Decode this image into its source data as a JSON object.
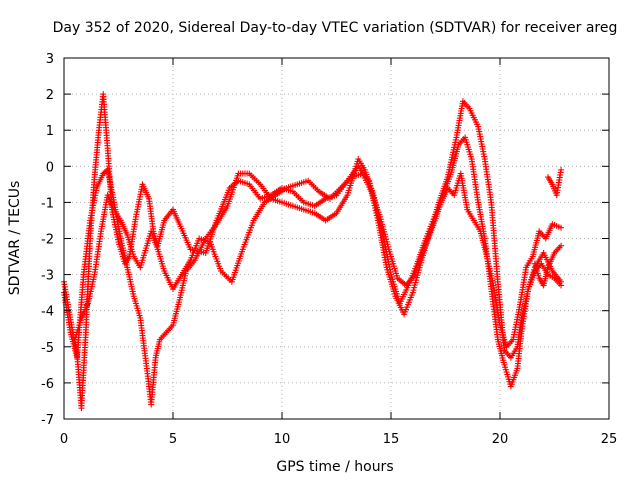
{
  "chart_data": {
    "type": "scatter",
    "title": "Day 352 of 2020, Sidereal Day-to-day VTEC variation (SDTVAR) for receiver areg",
    "xlabel": "GPS time / hours",
    "ylabel": "SDTVAR / TECUs",
    "xlim": [
      0,
      25
    ],
    "ylim": [
      -7,
      3
    ],
    "xticks": [
      0,
      5,
      10,
      15,
      20,
      25
    ],
    "yticks": [
      -7,
      -6,
      -5,
      -4,
      -3,
      -2,
      -1,
      0,
      1,
      2,
      3
    ],
    "grid": true,
    "marker": "plus",
    "color": "#ff0000",
    "series": [
      {
        "name": "trace-1",
        "x": [
          0,
          0.2,
          0.4,
          0.6,
          0.8,
          1.0,
          1.2,
          1.4,
          1.6,
          1.8,
          2.0,
          2.2,
          2.5,
          2.8,
          3.0,
          3.3,
          3.6,
          3.9,
          4.1,
          4.3,
          4.6,
          5.0,
          5.3,
          5.8,
          6.5,
          7.0,
          7.6,
          8.0,
          8.5,
          9.0,
          9.5,
          10.0,
          10.5,
          11.0,
          11.5,
          12.0,
          12.5,
          13.0,
          13.5,
          14.0,
          14.4,
          14.8,
          15.2,
          15.6,
          16.0,
          16.4,
          16.8,
          17.2,
          17.6,
          18.0,
          18.3,
          18.6,
          19.0,
          19.3,
          19.6,
          19.9,
          20.2,
          20.5,
          20.8,
          21.0,
          21.3,
          21.6,
          22.0,
          22.4,
          22.8
        ],
        "y": [
          -3.2,
          -3.9,
          -4.6,
          -5.2,
          -6.7,
          -4.6,
          -2.0,
          -0.3,
          1.0,
          2.0,
          0.5,
          -1.2,
          -2.1,
          -2.7,
          -2.5,
          -1.4,
          -0.5,
          -0.9,
          -1.8,
          -2.2,
          -1.5,
          -1.2,
          -1.6,
          -2.3,
          -2.4,
          -1.5,
          -0.6,
          -0.4,
          -0.5,
          -0.9,
          -0.8,
          -0.6,
          -0.7,
          -1.0,
          -1.1,
          -0.9,
          -0.8,
          -0.4,
          0.0,
          -0.4,
          -1.5,
          -2.8,
          -3.6,
          -4.1,
          -3.5,
          -2.6,
          -1.8,
          -1.0,
          -0.3,
          0.8,
          1.8,
          1.6,
          1.1,
          0.2,
          -1.0,
          -3.2,
          -5.1,
          -5.3,
          -5.0,
          -4.2,
          -3.4,
          -2.8,
          -2.4,
          -2.9,
          -3.2
        ]
      },
      {
        "name": "trace-2",
        "x": [
          0,
          0.3,
          0.6,
          0.9,
          1.2,
          1.5,
          1.8,
          2.0,
          2.3,
          2.6,
          2.9,
          3.2,
          3.5,
          3.8,
          4.0,
          4.2,
          4.4,
          4.7,
          5.0,
          5.3,
          5.6,
          6.0,
          6.5,
          7.0,
          7.5,
          8.0,
          8.5,
          9.0,
          9.5,
          10.0,
          10.5,
          11.0,
          11.5,
          12.0,
          12.5,
          13.0,
          13.5,
          13.8,
          14.2,
          14.6,
          15.0,
          15.4,
          15.8,
          16.2,
          16.6,
          17.0,
          17.4,
          17.8,
          18.1,
          18.4,
          18.7,
          19.0,
          19.3,
          19.6,
          19.9,
          20.2,
          20.5,
          20.8,
          21.0,
          21.3,
          21.6,
          21.9,
          22.2,
          22.5,
          22.8
        ],
        "y": [
          -3.5,
          -4.6,
          -5.3,
          -3.0,
          -1.5,
          -0.6,
          -0.2,
          -0.1,
          -1.0,
          -2.0,
          -2.8,
          -3.6,
          -4.2,
          -5.6,
          -6.6,
          -5.3,
          -4.8,
          -4.6,
          -4.4,
          -3.7,
          -2.9,
          -2.6,
          -2.0,
          -1.6,
          -1.1,
          -0.2,
          -0.2,
          -0.5,
          -0.9,
          -1.0,
          -1.1,
          -1.2,
          -1.3,
          -1.5,
          -1.3,
          -0.8,
          0.2,
          -0.1,
          -0.8,
          -1.8,
          -3.0,
          -3.8,
          -3.3,
          -2.7,
          -2.0,
          -1.4,
          -0.8,
          -0.1,
          0.6,
          0.8,
          0.2,
          -1.0,
          -2.0,
          -3.4,
          -4.8,
          -5.5,
          -6.1,
          -5.6,
          -4.5,
          -3.4,
          -2.9,
          -2.7,
          -3.0,
          -3.1,
          -3.3
        ]
      },
      {
        "name": "trace-3",
        "x": [
          0.5,
          0.8,
          1.1,
          1.4,
          1.7,
          2.0,
          2.3,
          2.6,
          2.9,
          3.2,
          3.5,
          3.8,
          4.0,
          4.3,
          4.6,
          5.0,
          5.4,
          5.8,
          6.2,
          6.7,
          7.2,
          7.7,
          8.2,
          8.7,
          9.2,
          9.7,
          10.2,
          10.7,
          11.2,
          11.7,
          12.2,
          12.7,
          13.2,
          13.7,
          14.1,
          14.5,
          14.9,
          15.3,
          15.7,
          16.1,
          16.5,
          16.9,
          17.3,
          17.6,
          17.9,
          18.2,
          18.5,
          18.8,
          19.1,
          19.4,
          19.7,
          20.0,
          20.3,
          20.6,
          20.9,
          21.2,
          21.5,
          21.8,
          22.1,
          22.4,
          22.8
        ],
        "y": [
          -4.8,
          -4.2,
          -3.8,
          -3.0,
          -1.8,
          -0.8,
          -1.2,
          -1.5,
          -1.9,
          -2.5,
          -2.8,
          -2.2,
          -1.8,
          -2.3,
          -2.9,
          -3.4,
          -3.0,
          -2.6,
          -2.0,
          -2.1,
          -2.9,
          -3.2,
          -2.3,
          -1.5,
          -1.0,
          -0.8,
          -0.6,
          -0.5,
          -0.4,
          -0.7,
          -0.9,
          -0.6,
          -0.3,
          -0.2,
          -0.7,
          -1.4,
          -2.3,
          -3.1,
          -3.3,
          -3.0,
          -2.3,
          -1.7,
          -1.0,
          -0.6,
          -0.8,
          -0.2,
          -1.2,
          -1.5,
          -1.8,
          -2.5,
          -3.3,
          -4.4,
          -5.0,
          -4.8,
          -3.9,
          -2.8,
          -2.5,
          -1.8,
          -2.0,
          -1.6,
          -1.7
        ]
      },
      {
        "name": "trace-4",
        "x": [
          21.6,
          21.8,
          22.0,
          22.2,
          22.5,
          22.8
        ],
        "y": [
          -2.7,
          -3.1,
          -3.3,
          -2.8,
          -2.4,
          -2.2
        ]
      },
      {
        "name": "trace-5",
        "x": [
          22.2,
          22.4,
          22.6,
          22.8
        ],
        "y": [
          -0.3,
          -0.5,
          -0.8,
          -0.1
        ]
      }
    ]
  }
}
